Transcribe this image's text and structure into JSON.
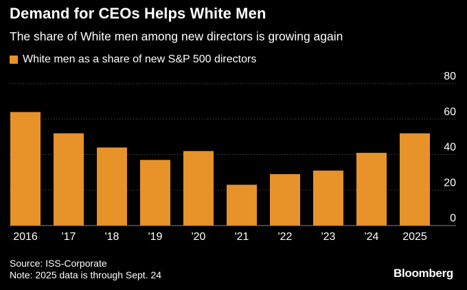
{
  "chart_data": {
    "type": "bar",
    "title": "Demand for CEOs Helps White Men",
    "subtitle": "The share of White men among new directors is growing again",
    "categories": [
      "2016",
      "'17",
      "'18",
      "'19",
      "'20",
      "'21",
      "'22",
      "'23",
      "'24",
      "2025"
    ],
    "series": [
      {
        "name": "White men as a share of new S&P 500 directors",
        "values": [
          64,
          52,
          44,
          37,
          42,
          23,
          29,
          31,
          41,
          52
        ],
        "color": "#E8922A"
      }
    ],
    "yticks": [
      "80",
      "60",
      "40",
      "20",
      "0"
    ],
    "ylim": [
      0,
      80
    ],
    "grid": true,
    "y_axis_side": "right",
    "legend_position": "top-left"
  },
  "footer": {
    "source": "Source: ISS-Corporate",
    "note": "Note: 2025 data is through Sept. 24"
  },
  "brand": "Bloomberg"
}
